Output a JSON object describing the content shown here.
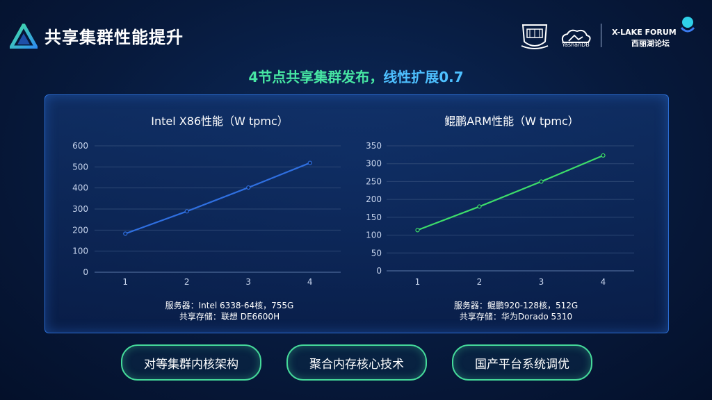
{
  "header": {
    "title": "共享集群性能提升",
    "partner_yashan": "YashanDB",
    "forum_en": "X-LAKE FORUM",
    "forum_zh": "西丽湖论坛"
  },
  "subtitle": {
    "part1": "4节点共享集群发布，",
    "part2": "线性扩展0.7"
  },
  "chart_data": [
    {
      "type": "line",
      "title": "Intel X86性能（W tpmc）",
      "categories": [
        "1",
        "2",
        "3",
        "4"
      ],
      "series": [
        {
          "values": [
            183,
            289,
            402,
            519
          ],
          "color": "#2f6fe0"
        }
      ],
      "ylim": [
        0,
        600
      ],
      "yticks": [
        0,
        100,
        200,
        300,
        400,
        500,
        600
      ],
      "grid": true
    },
    {
      "type": "line",
      "title": "鲲鹏ARM性能（W tpmc）",
      "categories": [
        "1",
        "2",
        "3",
        "4"
      ],
      "series": [
        {
          "values": [
            114,
            180,
            250,
            323
          ],
          "color": "#3ddc6a"
        }
      ],
      "ylim": [
        0,
        350
      ],
      "yticks": [
        0,
        50,
        100,
        150,
        200,
        250,
        300,
        350
      ],
      "grid": true
    }
  ],
  "captions": {
    "left_line1": "服务器：Intel 6338-64核，755G",
    "left_line2": "共享存储：联想 DE6600H",
    "right_line1": "服务器：鲲鹏920-128核，512G",
    "right_line2": "共享存储：华为Dorado 5310"
  },
  "buttons": {
    "b1": "对等集群内核架构",
    "b2": "聚合内存核心技术",
    "b3": "国产平台系统调优"
  }
}
